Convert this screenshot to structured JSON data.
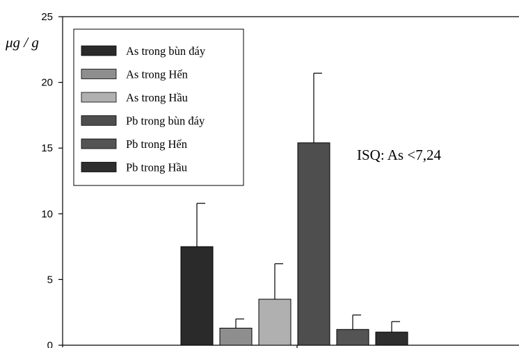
{
  "chart_data": {
    "type": "bar",
    "ylabel": "μg / g",
    "ylim": [
      0,
      25
    ],
    "yticks": [
      0,
      5,
      10,
      15,
      20,
      25
    ],
    "grid": false,
    "legend_position": "top-left",
    "series": [
      {
        "name": "As trong bùn đáy",
        "value": 7.5,
        "error": 3.3,
        "color": "#2a2a2a"
      },
      {
        "name": "As trong Hến",
        "value": 1.3,
        "error": 0.7,
        "color": "#8e8e8e"
      },
      {
        "name": "As trong Hầu",
        "value": 3.5,
        "error": 2.7,
        "color": "#b0b0b0"
      },
      {
        "name": "Pb trong bùn đáy",
        "value": 15.4,
        "error": 5.3,
        "color": "#4e4e4e"
      },
      {
        "name": "Pb trong Hến",
        "value": 1.2,
        "error": 1.1,
        "color": "#545454"
      },
      {
        "name": "Pb trong Hầu",
        "value": 1.0,
        "error": 0.8,
        "color": "#2e2e2e"
      }
    ],
    "annotations": [
      "ISQ: As <7,24"
    ]
  }
}
